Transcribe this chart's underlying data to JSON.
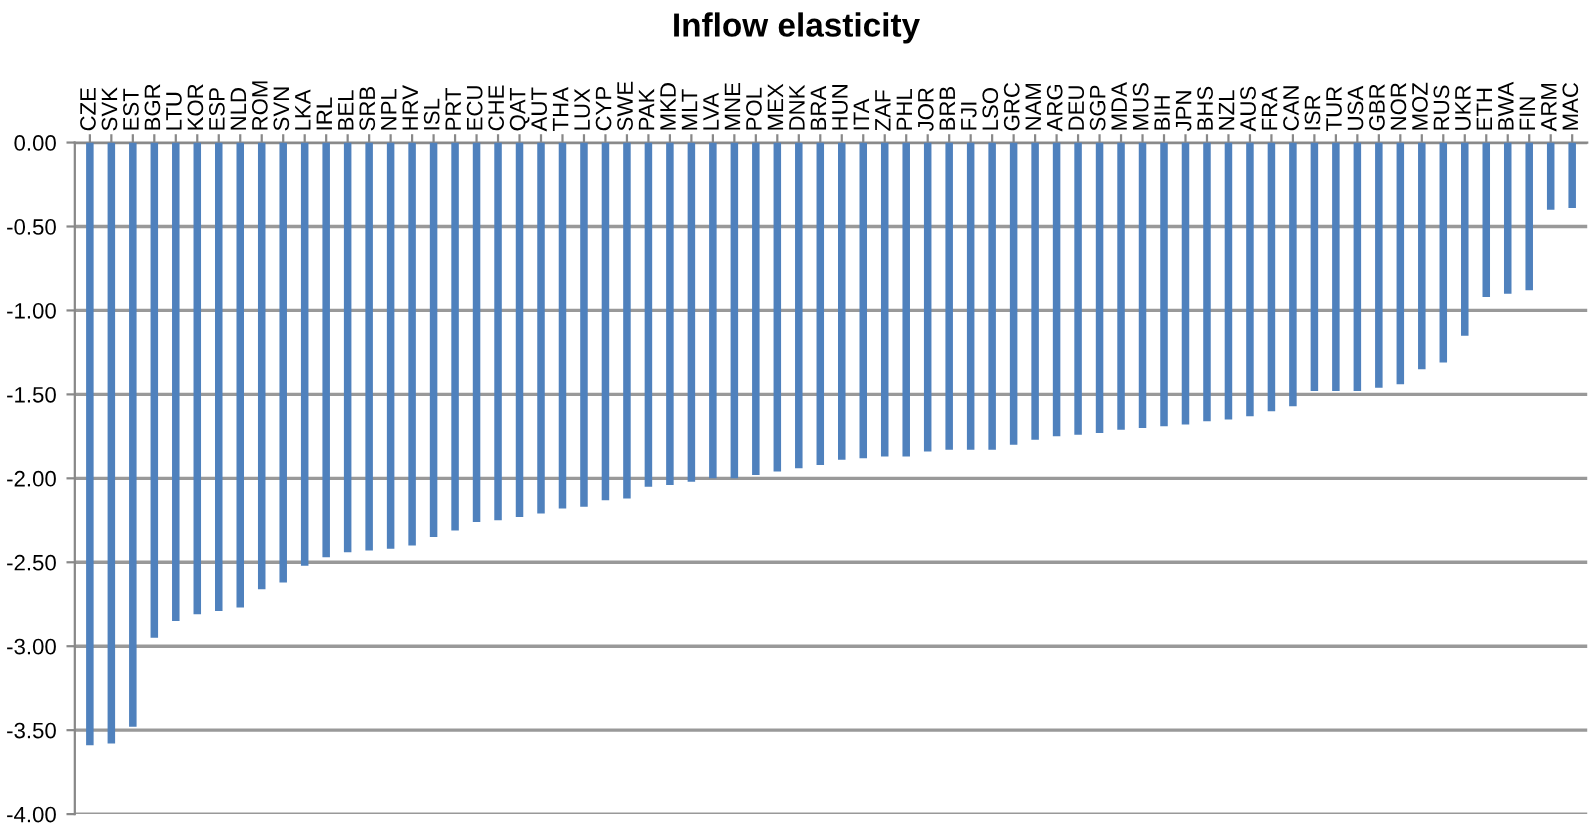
{
  "chart_data": {
    "type": "bar",
    "title": "Inflow elasticity",
    "categories": [
      "CZE",
      "SVK",
      "EST",
      "BGR",
      "LTU",
      "KOR",
      "ESP",
      "NLD",
      "ROM",
      "SVN",
      "LKA",
      "IRL",
      "BEL",
      "SRB",
      "NPL",
      "HRV",
      "ISL",
      "PRT",
      "ECU",
      "CHE",
      "QAT",
      "AUT",
      "THA",
      "LUX",
      "CYP",
      "SWE",
      "PAK",
      "MKD",
      "MLT",
      "LVA",
      "MNE",
      "POL",
      "MEX",
      "DNK",
      "BRA",
      "HUN",
      "ITA",
      "ZAF",
      "PHL",
      "JOR",
      "BRB",
      "FJI",
      "LSO",
      "GRC",
      "NAM",
      "ARG",
      "DEU",
      "SGP",
      "MDA",
      "MUS",
      "BIH",
      "JPN",
      "BHS",
      "NZL",
      "AUS",
      "FRA",
      "CAN",
      "ISR",
      "TUR",
      "USA",
      "GBR",
      "NOR",
      "MOZ",
      "RUS",
      "UKR",
      "ETH",
      "BWA",
      "FIN",
      "ARM",
      "MAC"
    ],
    "values": [
      -3.59,
      -3.58,
      -3.48,
      -2.95,
      -2.85,
      -2.81,
      -2.79,
      -2.77,
      -2.66,
      -2.62,
      -2.52,
      -2.47,
      -2.44,
      -2.43,
      -2.42,
      -2.4,
      -2.35,
      -2.31,
      -2.26,
      -2.25,
      -2.23,
      -2.21,
      -2.18,
      -2.17,
      -2.13,
      -2.12,
      -2.05,
      -2.04,
      -2.02,
      -2.0,
      -2.0,
      -1.98,
      -1.96,
      -1.94,
      -1.92,
      -1.89,
      -1.88,
      -1.87,
      -1.87,
      -1.84,
      -1.83,
      -1.83,
      -1.83,
      -1.8,
      -1.77,
      -1.75,
      -1.74,
      -1.73,
      -1.71,
      -1.7,
      -1.69,
      -1.68,
      -1.66,
      -1.65,
      -1.63,
      -1.6,
      -1.57,
      -1.48,
      -1.48,
      -1.48,
      -1.46,
      -1.44,
      -1.35,
      -1.31,
      -1.15,
      -0.92,
      -0.9,
      -0.88,
      -0.4,
      -0.39
    ],
    "color": "#4f81bd",
    "ylim": [
      -4,
      0
    ],
    "yticks": [
      {
        "value": 0,
        "label": "0.00"
      },
      {
        "value": -0.5,
        "label": "-0.50"
      },
      {
        "value": -1,
        "label": "-1.00"
      },
      {
        "value": -1.5,
        "label": "-1.50"
      },
      {
        "value": -2,
        "label": "-2.00"
      },
      {
        "value": -2.5,
        "label": "-2.50"
      },
      {
        "value": -3,
        "label": "-3.00"
      },
      {
        "value": -3.5,
        "label": "-3.50"
      },
      {
        "value": -4,
        "label": "-4.00"
      }
    ],
    "grid": "y"
  }
}
